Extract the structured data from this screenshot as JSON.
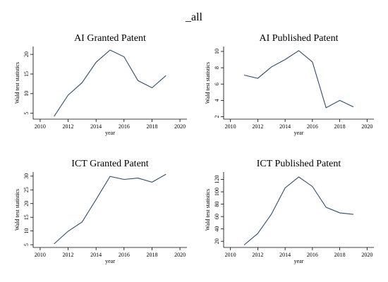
{
  "figure": {
    "title": "_all"
  },
  "chart_data": [
    {
      "type": "line",
      "title": "AI Granted Patent",
      "xlabel": "year",
      "ylabel": "Wald test statistics",
      "xlim": [
        2009.5,
        2020.5
      ],
      "ylim": [
        3.5,
        22
      ],
      "xticks": [
        2010,
        2012,
        2014,
        2016,
        2018,
        2020
      ],
      "yticks": [
        5,
        10,
        15,
        20
      ],
      "grid": false,
      "series": [
        {
          "x": [
            2011,
            2012,
            2013,
            2014,
            2015,
            2016,
            2017,
            2018,
            2019
          ],
          "values": [
            4.2,
            9.6,
            12.8,
            18.0,
            21.1,
            19.4,
            13.3,
            11.5,
            14.6
          ]
        }
      ]
    },
    {
      "type": "line",
      "title": "AI Published Patent",
      "xlabel": "year",
      "ylabel": "Wald test statistics",
      "xlim": [
        2009.5,
        2020.5
      ],
      "ylim": [
        1.7,
        10.6
      ],
      "xticks": [
        2010,
        2012,
        2014,
        2016,
        2018,
        2020
      ],
      "yticks": [
        2,
        4,
        6,
        8,
        10
      ],
      "grid": false,
      "series": [
        {
          "x": [
            2011,
            2012,
            2013,
            2014,
            2015,
            2016,
            2017,
            2018,
            2019
          ],
          "values": [
            7.1,
            6.7,
            8.1,
            9.0,
            10.1,
            8.7,
            3.1,
            4.0,
            3.2
          ]
        }
      ]
    },
    {
      "type": "line",
      "title": "ICT Granted Patent",
      "xlabel": "year",
      "ylabel": "Wald test statistics",
      "xlim": [
        2009.5,
        2020.5
      ],
      "ylim": [
        4,
        31.5
      ],
      "xticks": [
        2010,
        2012,
        2014,
        2016,
        2018,
        2020
      ],
      "yticks": [
        5,
        10,
        15,
        20,
        25,
        30
      ],
      "grid": false,
      "series": [
        {
          "x": [
            2011,
            2012,
            2013,
            2014,
            2015,
            2016,
            2017,
            2018,
            2019
          ],
          "values": [
            5.3,
            9.9,
            13.3,
            21.5,
            29.9,
            28.8,
            29.3,
            27.8,
            30.7
          ]
        }
      ]
    },
    {
      "type": "line",
      "title": "ICT Published Patent",
      "xlabel": "year",
      "ylabel": "Wald test statistics",
      "xlim": [
        2009.5,
        2020.5
      ],
      "ylim": [
        10,
        132
      ],
      "xticks": [
        2010,
        2012,
        2014,
        2016,
        2018,
        2020
      ],
      "yticks": [
        20,
        40,
        60,
        80,
        100,
        120
      ],
      "grid": false,
      "series": [
        {
          "x": [
            2011,
            2012,
            2013,
            2014,
            2015,
            2016,
            2017,
            2018,
            2019
          ],
          "values": [
            14.0,
            32.6,
            64.0,
            106.2,
            124.0,
            108.5,
            75.0,
            66.0,
            63.5
          ]
        }
      ]
    }
  ]
}
